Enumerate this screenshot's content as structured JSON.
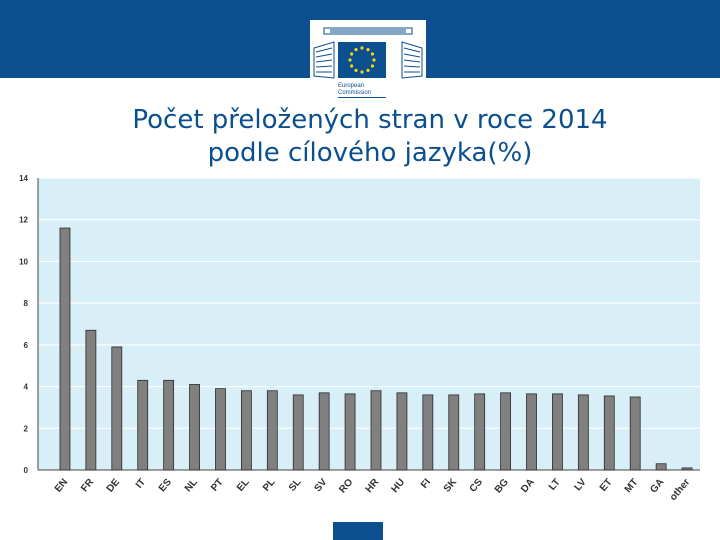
{
  "header": {
    "logo_text_line1": "European",
    "logo_text_line2": "Commission",
    "accent_color": "#0b4f8f",
    "logo_flag_color": "#0b4f8f",
    "logo_star_color": "#f3d417"
  },
  "chart_data": {
    "type": "bar",
    "title_line1": "Počet přeložených stran v roce 2014",
    "title_line2": "podle cílového jazyka(%)",
    "xlabel": "",
    "ylabel": "",
    "ylim": [
      0,
      14
    ],
    "yticks": [
      "0",
      "2",
      "4",
      "6",
      "8",
      "10",
      "12",
      "14"
    ],
    "grid": true,
    "legend": "none",
    "bar_color": "#808080",
    "plot_background": "#d9eff7",
    "categories": [
      "EN",
      "FR",
      "DE",
      "IT",
      "ES",
      "NL",
      "PT",
      "EL",
      "PL",
      "SL",
      "SV",
      "RO",
      "HR",
      "HU",
      "FI",
      "SK",
      "CS",
      "BG",
      "DA",
      "LT",
      "LV",
      "ET",
      "MT",
      "GA",
      "other"
    ],
    "values": [
      11.6,
      6.7,
      5.9,
      4.3,
      4.3,
      4.1,
      3.9,
      3.8,
      3.8,
      3.6,
      3.7,
      3.65,
      3.8,
      3.7,
      3.6,
      3.6,
      3.65,
      3.7,
      3.65,
      3.65,
      3.6,
      3.55,
      3.5,
      0.3,
      0.1
    ]
  }
}
